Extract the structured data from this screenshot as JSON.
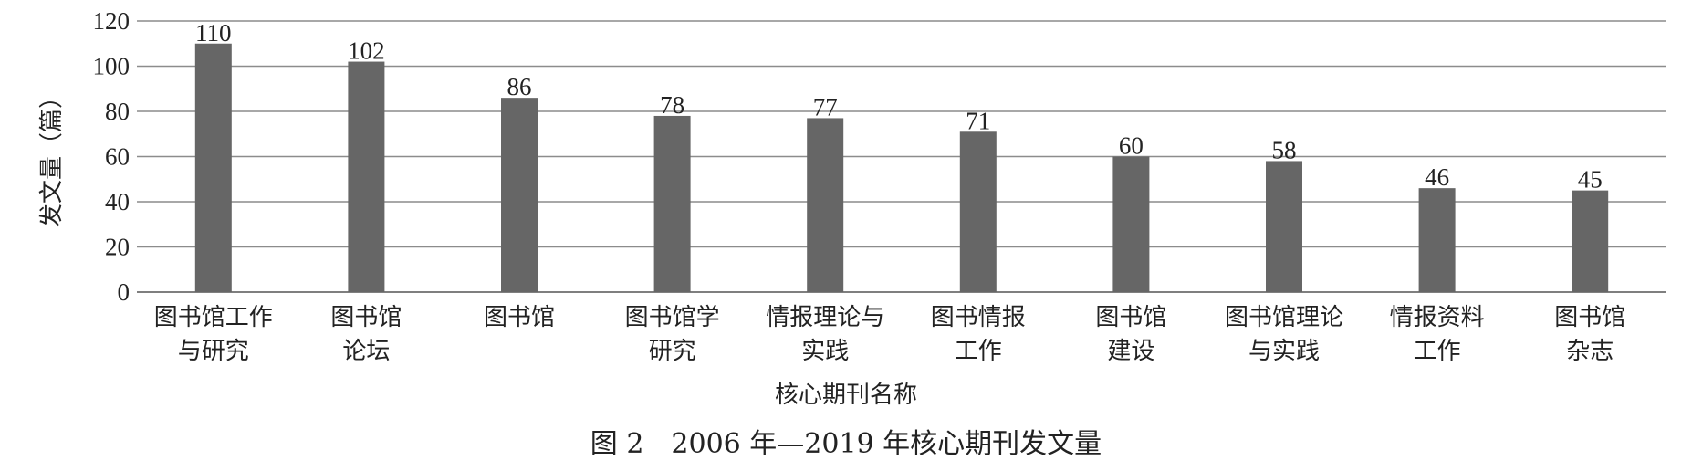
{
  "chart_data": {
    "type": "bar",
    "categories": [
      [
        "图书馆工作",
        "与研究"
      ],
      [
        "图书馆",
        "论坛"
      ],
      [
        "图书馆"
      ],
      [
        "图书馆学",
        "研究"
      ],
      [
        "情报理论与",
        "实践"
      ],
      [
        "图书情报",
        "工作"
      ],
      [
        "图书馆",
        "建设"
      ],
      [
        "图书馆理论",
        "与实践"
      ],
      [
        "情报资料",
        "工作"
      ],
      [
        "图书馆",
        "杂志"
      ]
    ],
    "values": [
      110,
      102,
      86,
      78,
      77,
      71,
      60,
      58,
      46,
      45
    ],
    "xlabel": "核心期刊名称",
    "ylabel": "发文量（篇）",
    "ylim": [
      0,
      120
    ],
    "yticks": [
      0,
      20,
      40,
      60,
      80,
      100,
      120
    ],
    "grid": true,
    "bar_color": "#666666",
    "grid_color": "#8c8c8c",
    "caption": "图 2　2006 年—2019 年核心期刊发文量"
  }
}
